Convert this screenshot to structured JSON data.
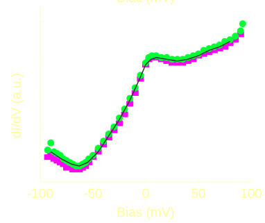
{
  "chart_data": {
    "type": "scatter",
    "title": "",
    "xlabel": "Bias (mV)",
    "ylabel": "dI/dV (a.u.)",
    "top_label_fragment": "Bias (mV)",
    "xlim": [
      -100,
      100
    ],
    "ylim": [
      0,
      1
    ],
    "x_ticks": [
      -100,
      -50,
      0,
      50,
      100
    ],
    "x_tick_labels": [
      "-100",
      "-50",
      "0",
      "50",
      "100"
    ],
    "y_tick_labels": [],
    "grid": false,
    "legend": "none",
    "colors": {
      "series_magenta": "#ff00ff",
      "series_green": "#00ff33",
      "fit_line": "#333333",
      "axis": "#ffffcc",
      "labels": "#ffff99"
    },
    "series": [
      {
        "color": "magenta",
        "x": [
          -93,
          -90,
          -87,
          -84,
          -81,
          -78,
          -75,
          -72,
          -69,
          -66,
          -63,
          -60,
          -57,
          -54,
          -50,
          -45,
          -40,
          -35,
          -30,
          -25,
          -20,
          -15,
          -10,
          -5,
          0,
          3,
          6,
          10,
          15,
          20,
          25,
          30,
          35,
          40,
          45,
          50,
          55,
          60,
          65,
          70,
          75,
          80,
          85,
          90
        ],
        "y": [
          0.14,
          0.16,
          0.13,
          0.12,
          0.11,
          0.1,
          0.08,
          0.08,
          0.07,
          0.07,
          0.07,
          0.08,
          0.09,
          0.11,
          0.14,
          0.17,
          0.21,
          0.25,
          0.29,
          0.33,
          0.38,
          0.44,
          0.5,
          0.58,
          0.66,
          0.69,
          0.7,
          0.7,
          0.69,
          0.68,
          0.67,
          0.67,
          0.67,
          0.68,
          0.69,
          0.71,
          0.72,
          0.73,
          0.74,
          0.75,
          0.76,
          0.78,
          0.8,
          0.83
        ]
      },
      {
        "color": "green",
        "x": [
          -93,
          -90,
          -87,
          -84,
          -81,
          -78,
          -75,
          -72,
          -69,
          -66,
          -63,
          -60,
          -57,
          -54,
          -50,
          -45,
          -40,
          -35,
          -30,
          -25,
          -20,
          -15,
          -10,
          -5,
          0,
          3,
          6,
          10,
          15,
          20,
          25,
          30,
          35,
          40,
          45,
          50,
          55,
          60,
          65,
          70,
          75,
          80,
          85,
          90,
          92
        ],
        "y": [
          0.18,
          0.22,
          0.17,
          0.16,
          0.15,
          0.13,
          0.12,
          0.11,
          0.1,
          0.09,
          0.09,
          0.1,
          0.11,
          0.13,
          0.15,
          0.19,
          0.23,
          0.27,
          0.31,
          0.36,
          0.41,
          0.47,
          0.53,
          0.6,
          0.67,
          0.7,
          0.71,
          0.71,
          0.7,
          0.7,
          0.69,
          0.69,
          0.69,
          0.7,
          0.71,
          0.72,
          0.74,
          0.75,
          0.76,
          0.77,
          0.79,
          0.8,
          0.82,
          0.85,
          0.89
        ]
      }
    ],
    "fit": {
      "x": [
        -90,
        -80,
        -70,
        -63,
        -55,
        -45,
        -35,
        -25,
        -15,
        -5,
        0,
        5,
        10,
        20,
        30,
        40,
        50,
        60,
        70,
        80
      ],
      "y": [
        0.17,
        0.13,
        0.1,
        0.09,
        0.11,
        0.17,
        0.26,
        0.35,
        0.46,
        0.59,
        0.66,
        0.69,
        0.7,
        0.69,
        0.68,
        0.69,
        0.71,
        0.74,
        0.76,
        0.79
      ]
    }
  }
}
